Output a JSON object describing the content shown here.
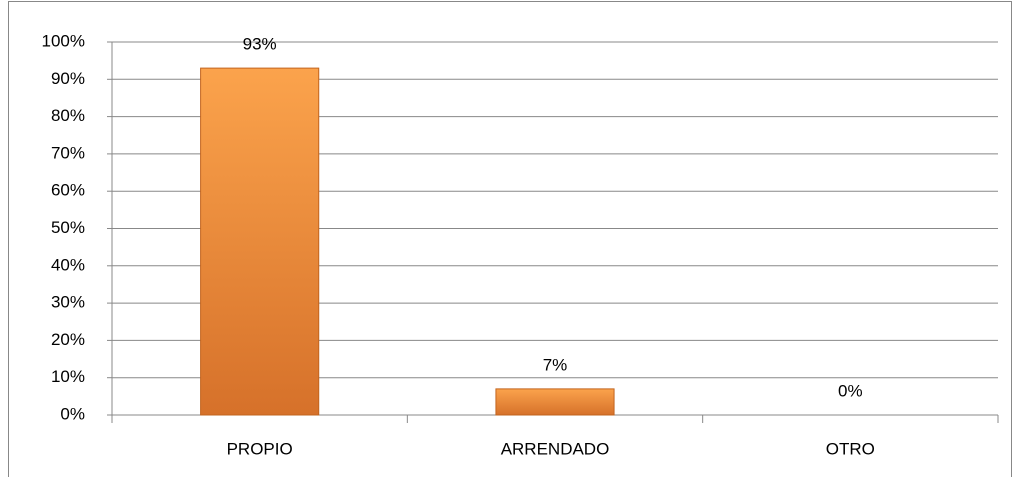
{
  "chart_data": {
    "type": "bar",
    "categories": [
      "PROPIO",
      "ARRENDADO",
      "OTRO"
    ],
    "values": [
      93,
      7,
      0
    ],
    "value_labels": [
      "93%",
      "7%",
      "0%"
    ],
    "color": "#f59a40",
    "ylim": [
      0,
      100
    ],
    "yticks": [
      {
        "value": 0,
        "label": "0%"
      },
      {
        "value": 10,
        "label": "10%"
      },
      {
        "value": 20,
        "label": "20%"
      },
      {
        "value": 30,
        "label": "30%"
      },
      {
        "value": 40,
        "label": "40%"
      },
      {
        "value": 50,
        "label": "50%"
      },
      {
        "value": 60,
        "label": "60%"
      },
      {
        "value": 70,
        "label": "70%"
      },
      {
        "value": 80,
        "label": "80%"
      },
      {
        "value": 90,
        "label": "90%"
      },
      {
        "value": 100,
        "label": "100%"
      }
    ],
    "grid": true
  }
}
